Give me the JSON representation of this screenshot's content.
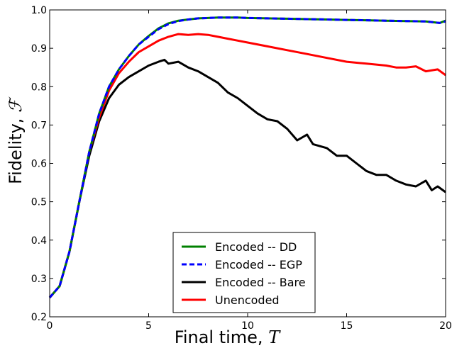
{
  "chart_data": {
    "type": "line",
    "xlabel": "Final time,",
    "xlabel_symbol": "T",
    "ylabel": "Fidelity,",
    "ylabel_symbol": "ℱ",
    "xlim": [
      0,
      20
    ],
    "ylim": [
      0.2,
      1.0
    ],
    "xticks": [
      "0",
      "5",
      "10",
      "15",
      "20"
    ],
    "yticks": [
      "0.2",
      "0.3",
      "0.4",
      "0.5",
      "0.6",
      "0.7",
      "0.8",
      "0.9",
      "1.0"
    ],
    "grid": false,
    "legend_position": "bottom-center",
    "series": [
      {
        "name": "Encoded -- DD",
        "color": "#008000",
        "dash": "solid",
        "points": [
          [
            0,
            0.25
          ],
          [
            0.5,
            0.28
          ],
          [
            1,
            0.37
          ],
          [
            1.5,
            0.5
          ],
          [
            2,
            0.63
          ],
          [
            2.5,
            0.73
          ],
          [
            3,
            0.8
          ],
          [
            3.5,
            0.845
          ],
          [
            4,
            0.88
          ],
          [
            4.5,
            0.91
          ],
          [
            5,
            0.932
          ],
          [
            5.5,
            0.952
          ],
          [
            6,
            0.965
          ],
          [
            6.5,
            0.972
          ],
          [
            7,
            0.975
          ],
          [
            7.5,
            0.978
          ],
          [
            8,
            0.979
          ],
          [
            8.5,
            0.98
          ],
          [
            9,
            0.98
          ],
          [
            9.5,
            0.98
          ],
          [
            10,
            0.979
          ],
          [
            11,
            0.978
          ],
          [
            12,
            0.977
          ],
          [
            13,
            0.976
          ],
          [
            14,
            0.975
          ],
          [
            15,
            0.974
          ],
          [
            16,
            0.973
          ],
          [
            17,
            0.972
          ],
          [
            18,
            0.971
          ],
          [
            19,
            0.97
          ],
          [
            19.7,
            0.966
          ],
          [
            20,
            0.972
          ]
        ]
      },
      {
        "name": "Encoded -- EGP",
        "color": "#0000ff",
        "dash": "dashed",
        "points": [
          [
            0,
            0.25
          ],
          [
            0.5,
            0.28
          ],
          [
            1,
            0.37
          ],
          [
            1.5,
            0.5
          ],
          [
            2,
            0.63
          ],
          [
            2.5,
            0.73
          ],
          [
            3,
            0.8
          ],
          [
            3.5,
            0.845
          ],
          [
            4,
            0.88
          ],
          [
            4.5,
            0.91
          ],
          [
            5,
            0.93
          ],
          [
            5.5,
            0.95
          ],
          [
            6,
            0.963
          ],
          [
            6.5,
            0.971
          ],
          [
            7,
            0.975
          ],
          [
            7.5,
            0.978
          ],
          [
            8,
            0.979
          ],
          [
            8.5,
            0.98
          ],
          [
            9,
            0.98
          ],
          [
            9.5,
            0.98
          ],
          [
            10,
            0.979
          ],
          [
            11,
            0.978
          ],
          [
            12,
            0.977
          ],
          [
            13,
            0.976
          ],
          [
            14,
            0.975
          ],
          [
            15,
            0.974
          ],
          [
            16,
            0.973
          ],
          [
            17,
            0.972
          ],
          [
            18,
            0.971
          ],
          [
            19,
            0.97
          ],
          [
            19.7,
            0.966
          ],
          [
            20,
            0.97
          ]
        ]
      },
      {
        "name": "Encoded -- Bare",
        "color": "#000000",
        "dash": "solid",
        "points": [
          [
            0,
            0.25
          ],
          [
            0.5,
            0.28
          ],
          [
            1,
            0.37
          ],
          [
            1.5,
            0.5
          ],
          [
            2,
            0.62
          ],
          [
            2.5,
            0.71
          ],
          [
            3,
            0.77
          ],
          [
            3.5,
            0.805
          ],
          [
            4,
            0.825
          ],
          [
            4.5,
            0.84
          ],
          [
            5,
            0.855
          ],
          [
            5.5,
            0.865
          ],
          [
            5.8,
            0.87
          ],
          [
            6,
            0.86
          ],
          [
            6.5,
            0.865
          ],
          [
            7,
            0.85
          ],
          [
            7.5,
            0.84
          ],
          [
            8,
            0.825
          ],
          [
            8.5,
            0.81
          ],
          [
            9,
            0.785
          ],
          [
            9.5,
            0.77
          ],
          [
            10,
            0.75
          ],
          [
            10.5,
            0.73
          ],
          [
            11,
            0.715
          ],
          [
            11.5,
            0.71
          ],
          [
            12,
            0.69
          ],
          [
            12.5,
            0.66
          ],
          [
            13,
            0.675
          ],
          [
            13.3,
            0.65
          ],
          [
            14,
            0.64
          ],
          [
            14.5,
            0.62
          ],
          [
            15,
            0.62
          ],
          [
            15.5,
            0.6
          ],
          [
            16,
            0.58
          ],
          [
            16.5,
            0.57
          ],
          [
            17,
            0.57
          ],
          [
            17.5,
            0.555
          ],
          [
            18,
            0.545
          ],
          [
            18.5,
            0.54
          ],
          [
            19,
            0.555
          ],
          [
            19.3,
            0.53
          ],
          [
            19.6,
            0.54
          ],
          [
            20,
            0.525
          ]
        ]
      },
      {
        "name": "Unencoded",
        "color": "#ff0000",
        "dash": "solid",
        "points": [
          [
            0,
            0.25
          ],
          [
            0.5,
            0.28
          ],
          [
            1,
            0.37
          ],
          [
            1.5,
            0.5
          ],
          [
            2,
            0.63
          ],
          [
            2.5,
            0.72
          ],
          [
            3,
            0.79
          ],
          [
            3.5,
            0.835
          ],
          [
            4,
            0.865
          ],
          [
            4.5,
            0.89
          ],
          [
            5,
            0.905
          ],
          [
            5.5,
            0.92
          ],
          [
            6,
            0.93
          ],
          [
            6.5,
            0.937
          ],
          [
            7,
            0.935
          ],
          [
            7.5,
            0.937
          ],
          [
            8,
            0.935
          ],
          [
            8.5,
            0.93
          ],
          [
            9,
            0.925
          ],
          [
            9.5,
            0.92
          ],
          [
            10,
            0.915
          ],
          [
            11,
            0.905
          ],
          [
            12,
            0.895
          ],
          [
            13,
            0.885
          ],
          [
            14,
            0.875
          ],
          [
            15,
            0.865
          ],
          [
            16,
            0.86
          ],
          [
            17,
            0.855
          ],
          [
            17.5,
            0.85
          ],
          [
            18,
            0.85
          ],
          [
            18.5,
            0.853
          ],
          [
            19,
            0.84
          ],
          [
            19.6,
            0.845
          ],
          [
            20,
            0.83
          ]
        ]
      }
    ]
  }
}
